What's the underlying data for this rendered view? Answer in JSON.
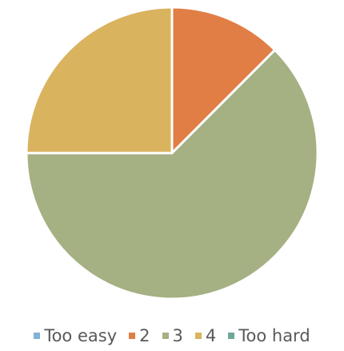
{
  "chart_data": {
    "type": "pie",
    "categories": [
      "Too easy",
      "2",
      "3",
      "4",
      "Too hard"
    ],
    "values": [
      0,
      12.5,
      62.5,
      25,
      0
    ],
    "colors": [
      "#7fb2d4",
      "#e07e45",
      "#a5b083",
      "#d9b35e",
      "#6ea89b"
    ],
    "legend_position": "bottom",
    "start_angle_deg": 0,
    "direction": "clockwise"
  }
}
